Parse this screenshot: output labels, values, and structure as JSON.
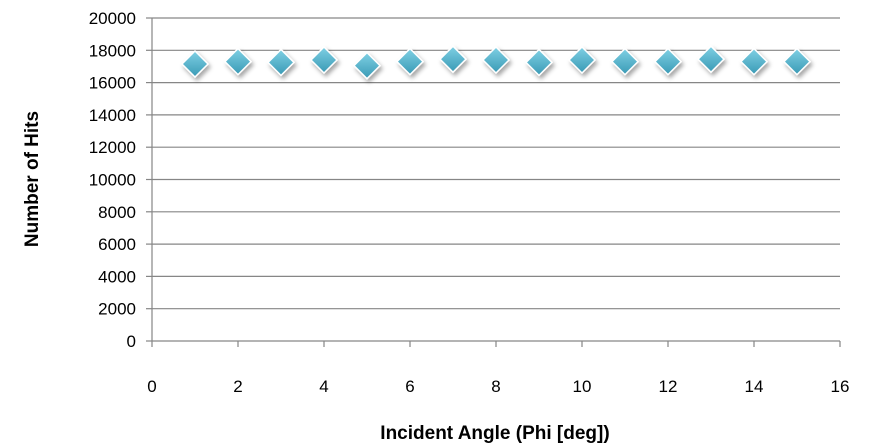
{
  "chart_data": {
    "type": "scatter",
    "title": "",
    "xlabel": "Incident Angle (Phi [deg])",
    "ylabel": "Number of Hits",
    "xlim": [
      0,
      16
    ],
    "ylim": [
      0,
      20000
    ],
    "x_ticks": [
      0,
      2,
      4,
      6,
      8,
      10,
      12,
      14,
      16
    ],
    "y_ticks": [
      0,
      2000,
      4000,
      6000,
      8000,
      10000,
      12000,
      14000,
      16000,
      18000,
      20000
    ],
    "x_tick_labels": [
      "0",
      "2",
      "4",
      "6",
      "8",
      "10",
      "12",
      "14",
      "16"
    ],
    "y_tick_labels": [
      "0",
      "2000",
      "4000",
      "6000",
      "8000",
      "10000",
      "12000",
      "14000",
      "16000",
      "18000",
      "20000"
    ],
    "grid": "horizontal",
    "legend": "none",
    "marker": "diamond",
    "series": [
      {
        "color": "#4BACC6",
        "points": [
          {
            "x": 1,
            "y": 17150
          },
          {
            "x": 2,
            "y": 17300
          },
          {
            "x": 3,
            "y": 17250
          },
          {
            "x": 4,
            "y": 17400
          },
          {
            "x": 5,
            "y": 17050
          },
          {
            "x": 6,
            "y": 17300
          },
          {
            "x": 7,
            "y": 17450
          },
          {
            "x": 8,
            "y": 17400
          },
          {
            "x": 9,
            "y": 17250
          },
          {
            "x": 10,
            "y": 17400
          },
          {
            "x": 11,
            "y": 17300
          },
          {
            "x": 12,
            "y": 17300
          },
          {
            "x": 13,
            "y": 17450
          },
          {
            "x": 14,
            "y": 17300
          },
          {
            "x": 15,
            "y": 17300
          }
        ]
      }
    ],
    "colors": {
      "gridline": "#868686",
      "axis": "#868686",
      "marker_fill": "#4BACC6",
      "marker_stroke": "#ffffff",
      "shadow": "#000000"
    }
  }
}
